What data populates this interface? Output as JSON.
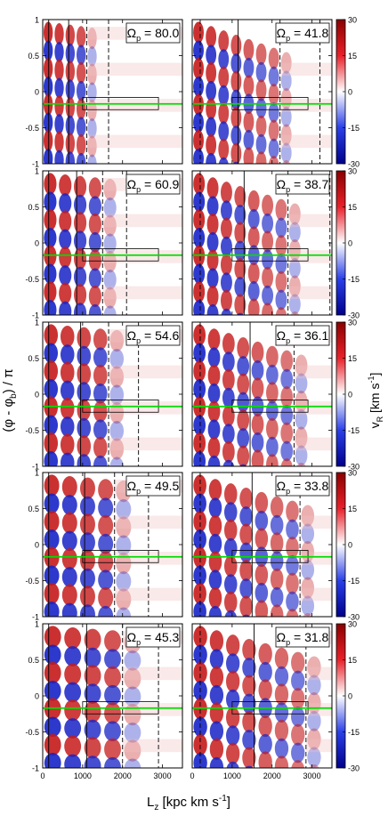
{
  "figure": {
    "ylabel": "(φ - φ",
    "ylabel_sub": "b",
    "ylabel_tail": ") / π",
    "xlabel": "L",
    "xlabel_sub": "z",
    "xlabel_tail": " [kpc km s",
    "xlabel_sup": "-1",
    "xlabel_close": "]",
    "cbar_label": "v",
    "cbar_label_sub": "R",
    "cbar_label_tail": " [km s",
    "cbar_label_sup": "-1",
    "cbar_label_close": "]",
    "omega_symbol": "Ω",
    "omega_sub": "p",
    "omega_eq": " = "
  },
  "chart_data": {
    "type": "heatmap",
    "xlim": [
      0,
      3500
    ],
    "ylim": [
      -1,
      1
    ],
    "x_ticks": [
      0,
      1000,
      2000,
      3000
    ],
    "x_tick_labels": [
      "0",
      "1000",
      "2000",
      "3000"
    ],
    "y_ticks": [
      1,
      0.5,
      0,
      -0.5,
      -1
    ],
    "y_tick_labels": [
      "1",
      "0.5",
      "0",
      "-0.5",
      "-1"
    ],
    "colorbar": {
      "range": [
        -30,
        30
      ],
      "ticks": [
        "30",
        "15",
        "0",
        "-15",
        "-30"
      ],
      "low_color": "#00008b",
      "mid_color": "#ffffff",
      "high_color": "#8b0000"
    },
    "highlight_line": {
      "y": -0.17,
      "color": "#00dd00"
    },
    "box": {
      "x": [
        1000,
        2900
      ],
      "y": [
        -0.25,
        -0.08
      ]
    },
    "panels": [
      {
        "row": 0,
        "col": 0,
        "omega_p": "80.0",
        "solid_x": [
          150,
          650
        ],
        "dash_x": [
          1100,
          1650
        ]
      },
      {
        "row": 0,
        "col": 1,
        "omega_p": "41.8",
        "solid_x": [
          1150
        ],
        "dash_x": [
          200,
          2200,
          3200
        ]
      },
      {
        "row": 1,
        "col": 0,
        "omega_p": "60.9",
        "solid_x": [
          150,
          850
        ],
        "dash_x": [
          1500,
          2100
        ]
      },
      {
        "row": 1,
        "col": 1,
        "omega_p": "38.7",
        "solid_x": [
          1300
        ],
        "dash_x": [
          200,
          2400,
          3450
        ]
      },
      {
        "row": 2,
        "col": 0,
        "omega_p": "54.6",
        "solid_x": [
          150,
          950
        ],
        "dash_x": [
          1650,
          2400
        ]
      },
      {
        "row": 2,
        "col": 1,
        "omega_p": "36.1",
        "solid_x": [
          1450
        ],
        "dash_x": [
          200,
          2550
        ]
      },
      {
        "row": 3,
        "col": 0,
        "omega_p": "49.5",
        "solid_x": [
          150,
          1050
        ],
        "dash_x": [
          1800,
          2650
        ]
      },
      {
        "row": 3,
        "col": 1,
        "omega_p": "33.8",
        "solid_x": [
          1500
        ],
        "dash_x": [
          200,
          2700
        ]
      },
      {
        "row": 4,
        "col": 0,
        "omega_p": "45.3",
        "solid_x": [
          150,
          1100
        ],
        "dash_x": [
          2000,
          2900
        ]
      },
      {
        "row": 4,
        "col": 1,
        "omega_p": "31.8",
        "solid_x": [
          1550
        ],
        "dash_x": [
          200,
          2850
        ]
      }
    ]
  }
}
